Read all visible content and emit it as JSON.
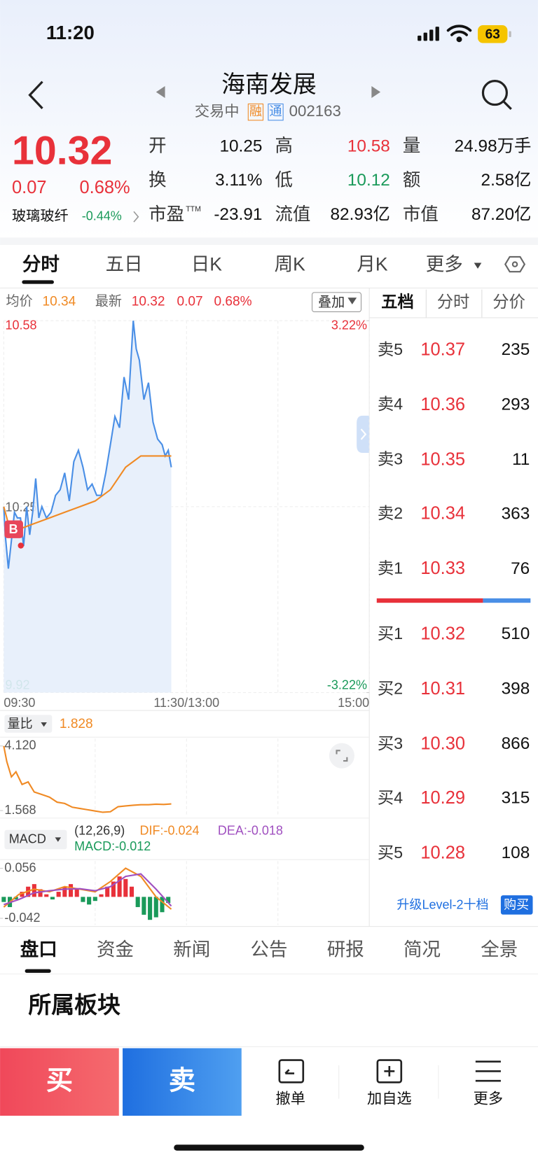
{
  "status_bar": {
    "time": "11:20",
    "battery": "63"
  },
  "header": {
    "title": "海南发展",
    "status": "交易中",
    "tag1": "融",
    "tag2": "通",
    "code": "002163"
  },
  "quote": {
    "price": "10.32",
    "change": "0.07",
    "change_pct": "0.68%",
    "sector": "玻璃玻纤",
    "sector_change": "-0.44%",
    "stats": [
      {
        "label": "开",
        "value": "10.25"
      },
      {
        "label": "高",
        "value": "10.58"
      },
      {
        "label": "量",
        "value": "24.98万手"
      },
      {
        "label": "换",
        "value": "3.11%"
      },
      {
        "label": "低",
        "value": "10.12"
      },
      {
        "label": "额",
        "value": "2.58亿"
      },
      {
        "label": "市盈",
        "sup": "TTM",
        "value": "-23.91"
      },
      {
        "label": "流值",
        "value": "82.93亿"
      },
      {
        "label": "市值",
        "value": "87.20亿"
      }
    ]
  },
  "tabs": [
    "分时",
    "五日",
    "日K",
    "周K",
    "月K",
    "更多"
  ],
  "order_book": {
    "tabs": [
      "五档",
      "分时",
      "分价"
    ],
    "asks": [
      {
        "label": "卖5",
        "price": "10.37",
        "volume": "235"
      },
      {
        "label": "卖4",
        "price": "10.36",
        "volume": "293"
      },
      {
        "label": "卖3",
        "price": "10.35",
        "volume": "11"
      },
      {
        "label": "卖2",
        "price": "10.34",
        "volume": "363"
      },
      {
        "label": "卖1",
        "price": "10.33",
        "volume": "76"
      }
    ],
    "bids": [
      {
        "label": "买1",
        "price": "10.32",
        "volume": "510"
      },
      {
        "label": "买2",
        "price": "10.31",
        "volume": "398"
      },
      {
        "label": "买3",
        "price": "10.30",
        "volume": "866"
      },
      {
        "label": "买4",
        "price": "10.29",
        "volume": "315"
      },
      {
        "label": "买5",
        "price": "10.28",
        "volume": "108"
      }
    ],
    "upgrade": "升级Level-2十档",
    "buy_button": "购买"
  },
  "chart_data": [
    {
      "type": "line",
      "avg_value": "10.34",
      "latest": "10.32",
      "change": "0.07",
      "change_pct": "0.68%",
      "overlay": "叠加",
      "buy_marker": "B",
      "xlim": [
        0,
        240
      ],
      "xticks": [
        {
          "value": 0,
          "label": "09:30"
        },
        {
          "value": 120,
          "label": "11:30/13:00"
        },
        {
          "value": 240,
          "label": "15:00"
        }
      ],
      "ylim": [
        9.92,
        10.58
      ],
      "yticks": [
        10.58,
        10.25,
        9.92
      ],
      "y2lim": [
        -3.22,
        3.22
      ],
      "y2ticks": [
        {
          "value": 3.22,
          "label": "3.22%"
        },
        {
          "value": -3.22,
          "label": "-3.22%"
        }
      ],
      "series": [
        {
          "name": "均价",
          "color": "#f08a24",
          "x": [
            0,
            5,
            10,
            20,
            30,
            40,
            50,
            60,
            70,
            75,
            80,
            90,
            100,
            110
          ],
          "values": [
            10.25,
            10.2,
            10.21,
            10.22,
            10.23,
            10.24,
            10.25,
            10.26,
            10.28,
            10.3,
            10.32,
            10.34,
            10.34,
            10.34
          ]
        },
        {
          "name": "最新",
          "color": "#4a8fe6",
          "x": [
            0,
            1,
            3,
            5,
            7,
            9,
            11,
            13,
            15,
            17,
            19,
            21,
            23,
            25,
            28,
            31,
            34,
            37,
            40,
            43,
            46,
            49,
            52,
            55,
            58,
            61,
            64,
            67,
            70,
            73,
            76,
            79,
            82,
            85,
            87,
            89,
            92,
            95,
            98,
            101,
            104,
            106,
            108,
            110
          ],
          "values": [
            10.25,
            10.2,
            10.14,
            10.19,
            10.24,
            10.23,
            10.23,
            10.18,
            10.25,
            10.2,
            10.24,
            10.3,
            10.23,
            10.25,
            10.23,
            10.24,
            10.27,
            10.28,
            10.31,
            10.26,
            10.33,
            10.35,
            10.32,
            10.28,
            10.29,
            10.27,
            10.27,
            10.31,
            10.36,
            10.41,
            10.39,
            10.48,
            10.44,
            10.58,
            10.53,
            10.51,
            10.44,
            10.47,
            10.4,
            10.37,
            10.36,
            10.34,
            10.35,
            10.32
          ]
        }
      ]
    },
    {
      "type": "line",
      "title": "量比",
      "value_label": "1.828",
      "color": "#f08a24",
      "xlim": [
        0,
        240
      ],
      "ylim": [
        1.33,
        4.41
      ],
      "yticks": [
        {
          "value": 4.12,
          "label": "4.120"
        },
        {
          "value": 1.568,
          "label": "1.568"
        }
      ],
      "x": [
        0,
        2,
        5,
        8,
        12,
        16,
        20,
        25,
        30,
        35,
        40,
        45,
        50,
        55,
        60,
        65,
        70,
        75,
        80,
        85,
        90,
        95,
        100,
        105,
        110
      ],
      "values": [
        4.12,
        3.5,
        2.9,
        3.1,
        2.6,
        2.7,
        2.3,
        2.2,
        2.1,
        1.9,
        1.85,
        1.7,
        1.65,
        1.6,
        1.55,
        1.5,
        1.52,
        1.72,
        1.75,
        1.78,
        1.8,
        1.8,
        1.82,
        1.81,
        1.828
      ]
    },
    {
      "type": "macd",
      "title": "MACD",
      "params": "(12,26,9)",
      "legend": [
        "DIF:-0.024",
        "DEA:-0.018",
        "MACD:-0.012"
      ],
      "xlim": [
        0,
        240
      ],
      "ylim": [
        -0.055,
        0.07
      ],
      "yticks": [
        0.056,
        -0.042
      ],
      "bars": {
        "up_color": "#e8313a",
        "down_color": "#1a9a5a",
        "x": [
          0,
          4,
          8,
          12,
          16,
          20,
          24,
          28,
          32,
          36,
          40,
          44,
          48,
          52,
          56,
          60,
          64,
          68,
          72,
          76,
          80,
          84,
          88,
          92,
          96,
          100,
          104,
          108
        ],
        "values": [
          -0.01,
          -0.02,
          -0.005,
          0.01,
          0.02,
          0.025,
          0.015,
          0.005,
          -0.005,
          0.01,
          0.02,
          0.025,
          0.015,
          -0.01,
          -0.015,
          -0.008,
          0.005,
          0.02,
          0.03,
          0.04,
          0.035,
          0.02,
          -0.02,
          -0.035,
          -0.045,
          -0.04,
          -0.03,
          -0.012
        ]
      },
      "series": [
        {
          "color": "#f08a24",
          "x": [
            0,
            10,
            20,
            30,
            40,
            50,
            60,
            70,
            80,
            90,
            100,
            110
          ],
          "values": [
            -0.02,
            0.005,
            0.015,
            0.01,
            0.02,
            0.015,
            0.01,
            0.03,
            0.056,
            0.04,
            0.0,
            -0.024
          ]
        },
        {
          "color": "#a050c0",
          "x": [
            0,
            10,
            20,
            30,
            40,
            50,
            60,
            70,
            80,
            90,
            100,
            110
          ],
          "values": [
            -0.015,
            -0.005,
            0.008,
            0.012,
            0.015,
            0.016,
            0.012,
            0.02,
            0.04,
            0.045,
            0.015,
            -0.018
          ]
        }
      ]
    }
  ],
  "bottom_tabs": [
    "盘口",
    "资金",
    "新闻",
    "公告",
    "研报",
    "简况",
    "全景"
  ],
  "section_title": "所属板块",
  "actions": {
    "buy": "买",
    "sell": "卖",
    "cancel": "撤单",
    "watch": "加自选",
    "more": "更多"
  }
}
